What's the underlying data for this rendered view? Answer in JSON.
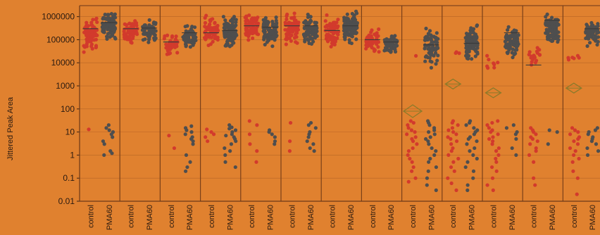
{
  "chart_data": {
    "type": "scatter",
    "subtype": "jittered-strip-plot",
    "ylabel": "Jittered Peak Area",
    "xlabel": "",
    "yscale": "log",
    "ylim": [
      0.01,
      3000000
    ],
    "yticks": [
      0.01,
      0.1,
      1,
      10,
      100,
      1000,
      10000,
      100000,
      1000000
    ],
    "ytick_labels": [
      "0.01",
      "0.1",
      "1",
      "10",
      "100",
      "1000",
      "10000",
      "100000",
      "1000000"
    ],
    "categories": [
      "control",
      "PMA60"
    ],
    "colors": {
      "control": "#D23A2C",
      "PMA60": "#4E4E4E",
      "diamond": "#8C7A2A",
      "background": "#E0812F",
      "grid": "#8E4A1C"
    },
    "panels": [
      {
        "control": {
          "median": 300000,
          "high": {
            "n": 70,
            "lo": 20000,
            "hi": 1200000
          },
          "low": [
            13
          ]
        },
        "PMA60": {
          "median": 550000,
          "high": {
            "n": 90,
            "lo": 80000,
            "hi": 2200000
          },
          "low": [
            20,
            15,
            12,
            10,
            8,
            6,
            4,
            3,
            1.5,
            1.2,
            1.0
          ]
        }
      },
      {
        "control": {
          "median": 300000,
          "high": {
            "n": 60,
            "lo": 60000,
            "hi": 1000000
          },
          "low": []
        },
        "PMA60": {
          "median": 320000,
          "high": {
            "n": 70,
            "lo": 60000,
            "hi": 1000000
          },
          "low": []
        }
      },
      {
        "control": {
          "median": 80000,
          "high": {
            "n": 50,
            "lo": 15000,
            "hi": 250000
          },
          "low": [
            7,
            2
          ]
        },
        "PMA60": {
          "median": 200000,
          "high": {
            "n": 60,
            "lo": 40000,
            "hi": 450000
          },
          "low": [
            18,
            15,
            12,
            10,
            8,
            6,
            5,
            4,
            3,
            1,
            0.5,
            0.3,
            0.2
          ]
        }
      },
      {
        "control": {
          "median": 200000,
          "high": {
            "n": 70,
            "lo": 30000,
            "hi": 1500000
          },
          "low": [
            13,
            10,
            8,
            6,
            4
          ]
        },
        "PMA60": {
          "median": 250000,
          "high": {
            "n": 100,
            "lo": 30000,
            "hi": 2200000
          },
          "low": [
            20,
            16,
            14,
            12,
            10,
            8,
            7,
            6,
            5,
            4,
            3,
            2,
            1.5,
            1,
            0.5,
            0.3
          ]
        }
      },
      {
        "control": {
          "median": 400000,
          "high": {
            "n": 70,
            "lo": 60000,
            "hi": 2000000
          },
          "low": [
            30,
            20,
            8,
            3,
            1.5,
            0.5
          ]
        },
        "PMA60": {
          "median": 350000,
          "high": {
            "n": 90,
            "lo": 40000,
            "hi": 1600000
          },
          "low": [
            12,
            10,
            8,
            6,
            4,
            3
          ]
        }
      },
      {
        "control": {
          "median": 400000,
          "high": {
            "n": 80,
            "lo": 40000,
            "hi": 2500000
          },
          "low": [
            25,
            4,
            1.5
          ]
        },
        "PMA60": {
          "median": 400000,
          "high": {
            "n": 80,
            "lo": 40000,
            "hi": 1500000
          },
          "low": [
            25,
            20,
            15,
            10,
            8,
            6,
            4,
            3,
            2,
            1.5
          ]
        }
      },
      {
        "control": {
          "median": 250000,
          "high": {
            "n": 70,
            "lo": 30000,
            "hi": 1500000
          },
          "low": []
        },
        "PMA60": {
          "median": 400000,
          "high": {
            "n": 110,
            "lo": 40000,
            "hi": 2500000
          },
          "low": []
        }
      },
      {
        "control": {
          "median": 100000,
          "high": {
            "n": 50,
            "lo": 20000,
            "hi": 350000
          },
          "low": []
        },
        "PMA60": {
          "median": 80000,
          "high": {
            "n": 60,
            "lo": 20000,
            "hi": 200000
          },
          "low": []
        }
      },
      {
        "control": {
          "median": 80,
          "high": {
            "n": 1,
            "lo": 20000,
            "hi": 20000
          },
          "low": [
            30,
            25,
            20,
            15,
            12,
            10,
            8,
            6,
            5,
            4,
            3,
            2,
            1.5,
            1,
            0.7,
            0.5,
            0.3,
            0.2,
            0.1,
            0.07
          ]
        },
        "PMA60": {
          "median": 60000,
          "high": {
            "n": 70,
            "lo": 5000,
            "hi": 600000
          },
          "low": [
            30,
            25,
            20,
            15,
            12,
            10,
            8,
            6,
            5,
            4,
            3,
            2,
            1.5,
            1,
            0.7,
            0.5,
            0.3,
            0.2,
            0.1,
            0.05,
            0.03
          ]
        }
      },
      {
        "control": {
          "median": 1200,
          "high": {
            "n": 3,
            "lo": 20000,
            "hi": 40000
          },
          "low": [
            30,
            25,
            20,
            15,
            12,
            10,
            8,
            6,
            5,
            4,
            3,
            2,
            1.5,
            1,
            0.7,
            0.5,
            0.3,
            0.2,
            0.1,
            0.06,
            0.03
          ]
        },
        "PMA60": {
          "median": 70000,
          "high": {
            "n": 90,
            "lo": 5000,
            "hi": 700000
          },
          "low": [
            30,
            25,
            20,
            15,
            12,
            10,
            8,
            6,
            5,
            4,
            3,
            2,
            1.5,
            1,
            0.7,
            0.5,
            0.3,
            0.2,
            0.1,
            0.05,
            0.03
          ]
        }
      },
      {
        "control": {
          "median": 500,
          "high": {
            "n": 8,
            "lo": 3000,
            "hi": 30000
          },
          "low": [
            30,
            25,
            20,
            15,
            12,
            10,
            8,
            6,
            5,
            4,
            3,
            2,
            1.5,
            1,
            0.7,
            0.5,
            0.3,
            0.2,
            0.1,
            0.05,
            0.03
          ]
        },
        "PMA60": {
          "median": 200000,
          "high": {
            "n": 80,
            "lo": 10000,
            "hi": 800000
          },
          "low": [
            20,
            15,
            10,
            8,
            5,
            2,
            1
          ]
        }
      },
      {
        "control": {
          "median": 8000,
          "high": {
            "n": 20,
            "lo": 5000,
            "hi": 80000
          },
          "low": [
            15,
            12,
            10,
            8,
            6,
            5,
            4,
            3,
            2,
            1.5,
            1,
            0.5,
            0.1,
            0.05
          ]
        },
        "PMA60": {
          "median": 700000,
          "high": {
            "n": 90,
            "lo": 40000,
            "hi": 2600000
          },
          "low": [
            12,
            10,
            3
          ]
        }
      },
      {
        "control": {
          "median": 800,
          "high": {
            "n": 6,
            "lo": 12000,
            "hi": 25000
          },
          "low": [
            15,
            12,
            10,
            8,
            6,
            5,
            4,
            3,
            2,
            1.5,
            1,
            0.7,
            0.5,
            0.2,
            0.1,
            0.02
          ]
        },
        "PMA60": {
          "median": 300000,
          "high": {
            "n": 60,
            "lo": 40000,
            "hi": 900000
          },
          "low": [
            15,
            12,
            10,
            8,
            6,
            5,
            4,
            3,
            2,
            1.5,
            1
          ]
        }
      }
    ]
  }
}
